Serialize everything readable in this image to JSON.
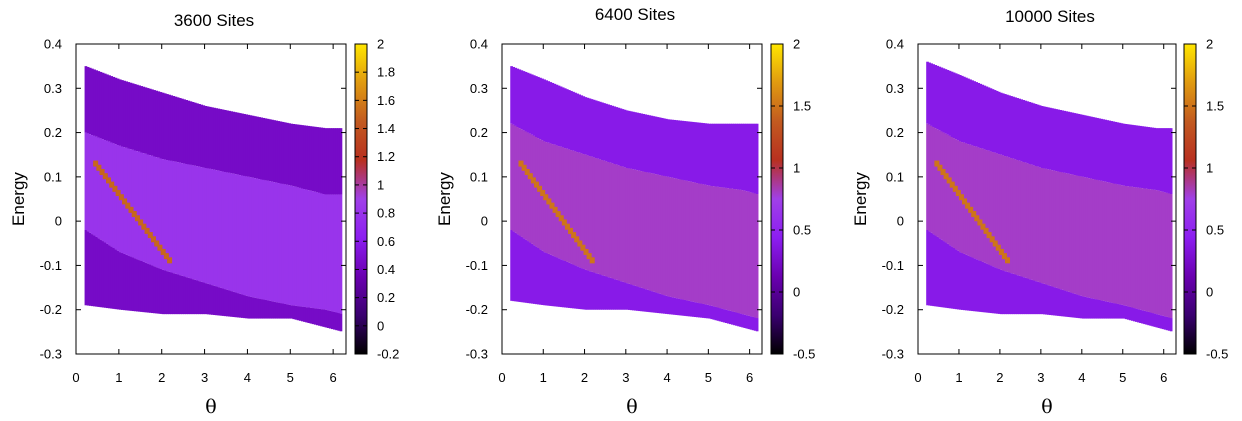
{
  "colors": {
    "palette": [
      "#000000",
      "#3a0070",
      "#6a00b0",
      "#8c1ef0",
      "#a040e8",
      "#b83020",
      "#c25a20",
      "#e09a10",
      "#ffe600"
    ],
    "axis": "#000000",
    "background": "#ffffff"
  },
  "chart_data": [
    {
      "type": "heatmap",
      "title": "3600 Sites",
      "xlabel": "θ",
      "ylabel": "Energy",
      "xlim": [
        0,
        6.3
      ],
      "ylim": [
        -0.3,
        0.4
      ],
      "xticks": [
        "0",
        "1",
        "2",
        "3",
        "4",
        "5",
        "6"
      ],
      "yticks": [
        "-0.3",
        "-0.2",
        "-0.1",
        "0",
        "0.1",
        "0.2",
        "0.3",
        "0.4"
      ],
      "colorbar": {
        "range": [
          -0.2,
          2
        ],
        "ticks": [
          "-0.2",
          "0",
          "0.2",
          "0.4",
          "0.6",
          "0.8",
          "1",
          "1.2",
          "1.4",
          "1.6",
          "1.8",
          "2"
        ]
      },
      "band": {
        "theta": [
          0.2,
          1.0,
          2.0,
          3.0,
          4.0,
          5.0,
          5.8,
          6.2
        ],
        "upper": [
          0.35,
          0.32,
          0.29,
          0.26,
          0.24,
          0.22,
          0.21,
          0.21
        ],
        "lower": [
          -0.19,
          -0.2,
          -0.21,
          -0.21,
          -0.22,
          -0.22,
          -0.24,
          -0.25
        ],
        "core_upper": [
          0.2,
          0.17,
          0.14,
          0.12,
          0.1,
          0.08,
          0.06,
          0.06
        ],
        "core_lower": [
          -0.02,
          -0.07,
          -0.11,
          -0.14,
          -0.17,
          -0.19,
          -0.2,
          -0.21
        ],
        "core_intensity": 0.8,
        "edge_intensity": 0.45
      }
    },
    {
      "type": "heatmap",
      "title": "6400 Sites",
      "xlabel": "θ",
      "ylabel": "Energy",
      "xlim": [
        0,
        6.3
      ],
      "ylim": [
        -0.3,
        0.4
      ],
      "xticks": [
        "0",
        "1",
        "2",
        "3",
        "4",
        "5",
        "6"
      ],
      "yticks": [
        "-0.3",
        "-0.2",
        "-0.1",
        "0",
        "0.1",
        "0.2",
        "0.3",
        "0.4"
      ],
      "colorbar": {
        "range": [
          -0.5,
          2
        ],
        "ticks": [
          "-0.5",
          "0",
          "0.5",
          "1",
          "1.5",
          "2"
        ]
      },
      "band": {
        "theta": [
          0.2,
          1.0,
          2.0,
          3.0,
          4.0,
          5.0,
          5.8,
          6.2
        ],
        "upper": [
          0.35,
          0.32,
          0.28,
          0.25,
          0.23,
          0.22,
          0.22,
          0.22
        ],
        "lower": [
          -0.18,
          -0.19,
          -0.2,
          -0.2,
          -0.21,
          -0.22,
          -0.24,
          -0.25
        ],
        "core_upper": [
          0.22,
          0.18,
          0.15,
          0.12,
          0.1,
          0.08,
          0.07,
          0.06
        ],
        "core_lower": [
          -0.02,
          -0.07,
          -0.11,
          -0.14,
          -0.17,
          -0.19,
          -0.21,
          -0.22
        ],
        "core_intensity": 0.8,
        "edge_intensity": 0.4
      }
    },
    {
      "type": "heatmap",
      "title": "10000 Sites",
      "xlabel": "θ",
      "ylabel": "Energy",
      "xlim": [
        0,
        6.3
      ],
      "ylim": [
        -0.3,
        0.4
      ],
      "xticks": [
        "0",
        "1",
        "2",
        "3",
        "4",
        "5",
        "6"
      ],
      "yticks": [
        "-0.3",
        "-0.2",
        "-0.1",
        "0",
        "0.1",
        "0.2",
        "0.3",
        "0.4"
      ],
      "colorbar": {
        "range": [
          -0.5,
          2
        ],
        "ticks": [
          "-0.5",
          "0",
          "0.5",
          "1",
          "1.5",
          "2"
        ]
      },
      "band": {
        "theta": [
          0.2,
          1.0,
          2.0,
          3.0,
          4.0,
          5.0,
          5.8,
          6.2
        ],
        "upper": [
          0.36,
          0.33,
          0.29,
          0.26,
          0.24,
          0.22,
          0.21,
          0.21
        ],
        "lower": [
          -0.19,
          -0.2,
          -0.21,
          -0.21,
          -0.22,
          -0.22,
          -0.24,
          -0.25
        ],
        "core_upper": [
          0.22,
          0.18,
          0.15,
          0.12,
          0.1,
          0.08,
          0.07,
          0.06
        ],
        "core_lower": [
          -0.02,
          -0.07,
          -0.11,
          -0.14,
          -0.17,
          -0.19,
          -0.21,
          -0.22
        ],
        "core_intensity": 0.8,
        "edge_intensity": 0.4
      }
    }
  ]
}
